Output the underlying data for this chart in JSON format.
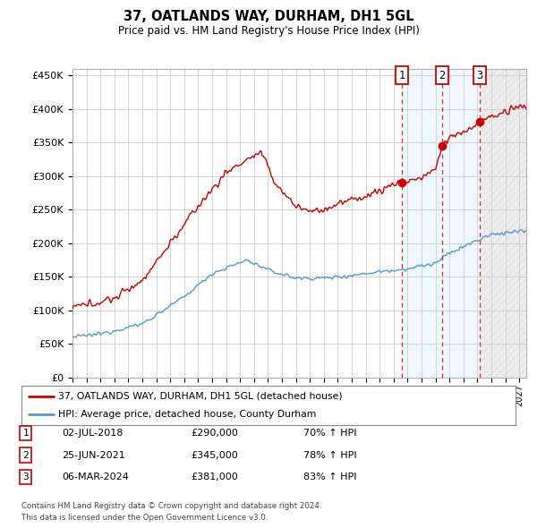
{
  "title": "37, OATLANDS WAY, DURHAM, DH1 5GL",
  "subtitle": "Price paid vs. HM Land Registry's House Price Index (HPI)",
  "ylim": [
    0,
    460000
  ],
  "yticks": [
    0,
    50000,
    100000,
    150000,
    200000,
    250000,
    300000,
    350000,
    400000,
    450000
  ],
  "ytick_labels": [
    "£0",
    "£50K",
    "£100K",
    "£150K",
    "£200K",
    "£250K",
    "£300K",
    "£350K",
    "£400K",
    "£450K"
  ],
  "xlim_start": 1995.0,
  "xlim_end": 2027.5,
  "sale_dates": [
    2018.58,
    2021.48,
    2024.18
  ],
  "sale_prices": [
    290000,
    345000,
    381000
  ],
  "sale_labels": [
    "1",
    "2",
    "3"
  ],
  "sale_info": [
    {
      "label": "1",
      "date": "02-JUL-2018",
      "price": "£290,000",
      "hpi": "70% ↑ HPI"
    },
    {
      "label": "2",
      "date": "25-JUN-2021",
      "price": "£345,000",
      "hpi": "78% ↑ HPI"
    },
    {
      "label": "3",
      "date": "06-MAR-2024",
      "price": "£381,000",
      "hpi": "83% ↑ HPI"
    }
  ],
  "legend_entry_red": "37, OATLANDS WAY, DURHAM, DH1 5GL (detached house)",
  "legend_entry_blue": "HPI: Average price, detached house, County Durham",
  "footer_line1": "Contains HM Land Registry data © Crown copyright and database right 2024.",
  "footer_line2": "This data is licensed under the Open Government Licence v3.0.",
  "bg_color": "#ffffff",
  "grid_color": "#cccccc",
  "red_line_color": "#cc0000",
  "blue_line_color": "#5599cc",
  "shade_color": "#ddeeff",
  "hatch_color": "#dddddd"
}
